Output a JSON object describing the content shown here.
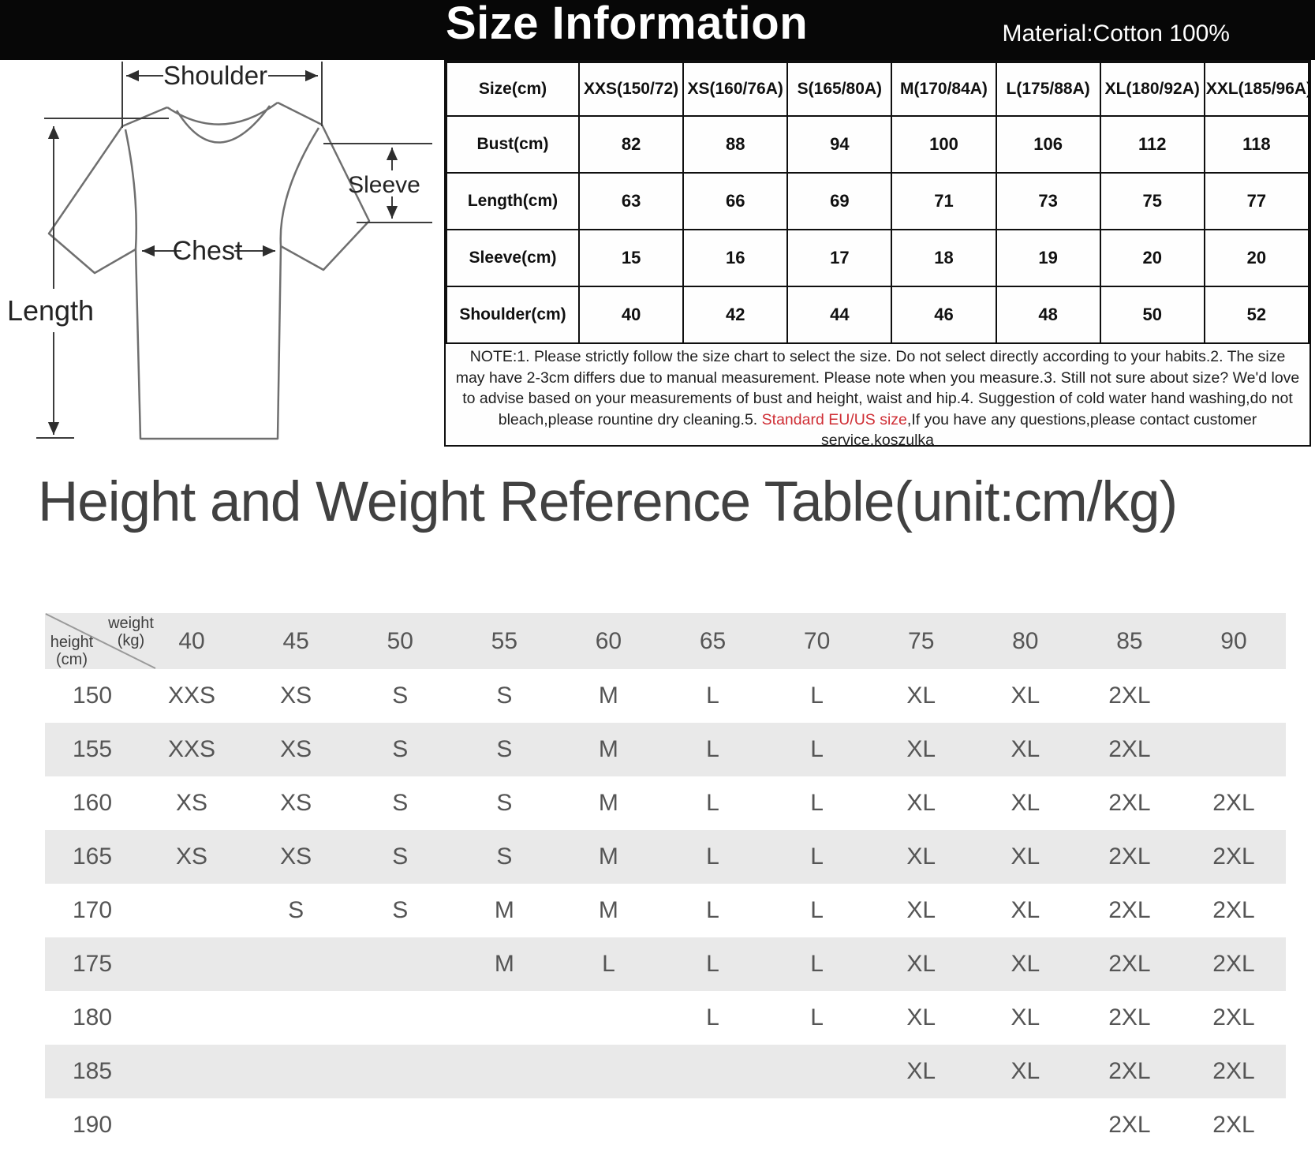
{
  "header": {
    "title": "Size Information",
    "material": "Material:Cotton 100%"
  },
  "diagram": {
    "shoulder_label": "Shoulder",
    "sleeve_label": "Sleeve",
    "chest_label": "Chest",
    "length_label": "Length"
  },
  "size_table": {
    "columns": [
      "Size(cm)",
      "XXS(150/72)",
      "XS(160/76A)",
      "S(165/80A)",
      "M(170/84A)",
      "L(175/88A)",
      "XL(180/92A)",
      "XXL(185/96A)"
    ],
    "rows": [
      {
        "label": "Bust(cm)",
        "values": [
          "82",
          "88",
          "94",
          "100",
          "106",
          "112",
          "118"
        ]
      },
      {
        "label": "Length(cm)",
        "values": [
          "63",
          "66",
          "69",
          "71",
          "73",
          "75",
          "77"
        ]
      },
      {
        "label": "Sleeve(cm)",
        "values": [
          "15",
          "16",
          "17",
          "18",
          "19",
          "20",
          "20"
        ]
      },
      {
        "label": "Shoulder(cm)",
        "values": [
          "40",
          "42",
          "44",
          "46",
          "48",
          "50",
          "52"
        ]
      }
    ]
  },
  "note": {
    "part1": "NOTE:1. Please strictly follow the size chart to select the size. Do not select directly according to your habits.2. The size may have 2-3cm differs due to manual measurement. Please note when you measure.3. Still not sure about size? We'd love to advise based on your measurements of bust and height, waist and hip.4. Suggestion of cold water hand washing,do not bleach,please rountine dry cleaning.5. ",
    "highlight": "Standard EU/US size",
    "part2": ",If you have any questions,please contact customer service.koszulka"
  },
  "reference": {
    "heading": "Height and Weight Reference Table(unit:cm/kg)",
    "corner": {
      "top_label": "weight",
      "top_unit": "(kg)",
      "bottom_label": "height",
      "bottom_unit": "(cm)"
    },
    "weights": [
      "40",
      "45",
      "50",
      "55",
      "60",
      "65",
      "70",
      "75",
      "80",
      "85",
      "90"
    ],
    "rows": [
      {
        "height": "150",
        "sizes": [
          "XXS",
          "XS",
          "S",
          "S",
          "M",
          "L",
          "L",
          "XL",
          "XL",
          "2XL",
          ""
        ]
      },
      {
        "height": "155",
        "sizes": [
          "XXS",
          "XS",
          "S",
          "S",
          "M",
          "L",
          "L",
          "XL",
          "XL",
          "2XL",
          ""
        ]
      },
      {
        "height": "160",
        "sizes": [
          "XS",
          "XS",
          "S",
          "S",
          "M",
          "L",
          "L",
          "XL",
          "XL",
          "2XL",
          "2XL"
        ]
      },
      {
        "height": "165",
        "sizes": [
          "XS",
          "XS",
          "S",
          "S",
          "M",
          "L",
          "L",
          "XL",
          "XL",
          "2XL",
          "2XL"
        ]
      },
      {
        "height": "170",
        "sizes": [
          "",
          "S",
          "S",
          "M",
          "M",
          "L",
          "L",
          "XL",
          "XL",
          "2XL",
          "2XL"
        ]
      },
      {
        "height": "175",
        "sizes": [
          "",
          "",
          "",
          "M",
          "L",
          "L",
          "L",
          "XL",
          "XL",
          "2XL",
          "2XL"
        ]
      },
      {
        "height": "180",
        "sizes": [
          "",
          "",
          "",
          "",
          "",
          "L",
          "L",
          "XL",
          "XL",
          "2XL",
          "2XL"
        ]
      },
      {
        "height": "185",
        "sizes": [
          "",
          "",
          "",
          "",
          "",
          "",
          "",
          "XL",
          "XL",
          "2XL",
          "2XL"
        ]
      },
      {
        "height": "190",
        "sizes": [
          "",
          "",
          "",
          "",
          "",
          "",
          "",
          "",
          "",
          "2XL",
          "2XL"
        ]
      }
    ]
  },
  "colors": {
    "note_highlight": "#cf2e35",
    "stripe_gray": "#e9e9e9",
    "header_bar": "#070707"
  }
}
